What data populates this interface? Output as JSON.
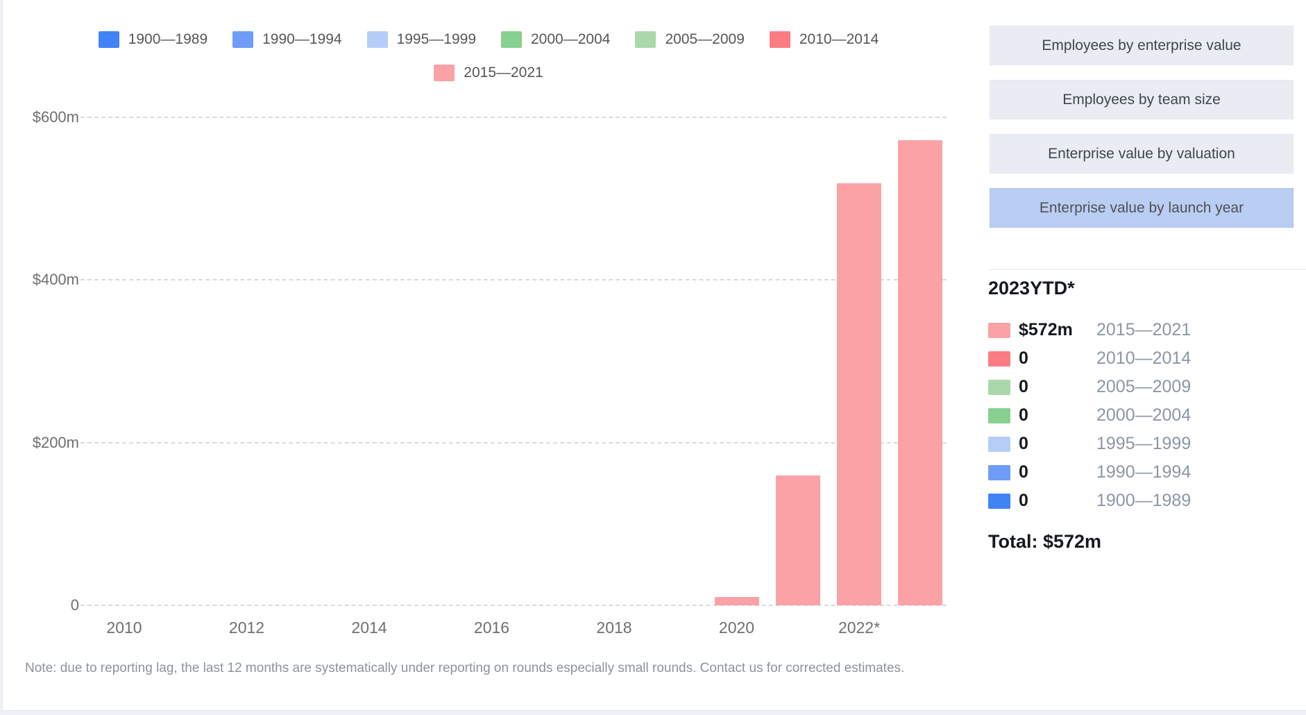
{
  "note": "Note: due to reporting lag, the last 12 months are systematically under reporting on rounds especially small rounds. Contact us for corrected estimates.",
  "view_buttons": [
    {
      "label": "Employees by enterprise value",
      "active": false
    },
    {
      "label": "Employees by team size",
      "active": false
    },
    {
      "label": "Enterprise value by valuation",
      "active": false
    },
    {
      "label": "Enterprise value by launch year",
      "active": true
    }
  ],
  "stats": {
    "heading": "2023YTD*",
    "rows": [
      {
        "color": "#fba2a6",
        "value": "$572m",
        "label": "2015—2021"
      },
      {
        "color": "#fb7d82",
        "value": "0",
        "label": "2010—2014"
      },
      {
        "color": "#a9d8ab",
        "value": "0",
        "label": "2005—2009"
      },
      {
        "color": "#87d08f",
        "value": "0",
        "label": "2000—2004"
      },
      {
        "color": "#b5cdf8",
        "value": "0",
        "label": "1995—1999"
      },
      {
        "color": "#6f9cf8",
        "value": "0",
        "label": "1990—1994"
      },
      {
        "color": "#4183f4",
        "value": "0",
        "label": "1900—1989"
      }
    ],
    "total": "Total: $572m"
  },
  "chart_data": {
    "type": "bar",
    "stacked": true,
    "title": "",
    "xlabel": "",
    "ylabel": "",
    "unit": "$m (enterprise value)",
    "x": [
      2020,
      2021,
      2022,
      2023
    ],
    "series": [
      {
        "name": "1900—1989",
        "color": "#4183f4",
        "values": [
          0,
          0,
          0,
          0
        ]
      },
      {
        "name": "1990—1994",
        "color": "#6f9cf8",
        "values": [
          0,
          0,
          0,
          0
        ]
      },
      {
        "name": "1995—1999",
        "color": "#b5cdf8",
        "values": [
          0,
          0,
          0,
          0
        ]
      },
      {
        "name": "2000—2004",
        "color": "#87d08f",
        "values": [
          0,
          0,
          0,
          0
        ]
      },
      {
        "name": "2005—2009",
        "color": "#a9d8ab",
        "values": [
          0,
          0,
          0,
          0
        ]
      },
      {
        "name": "2010—2014",
        "color": "#fb7d82",
        "values": [
          0,
          0,
          0,
          0
        ]
      },
      {
        "name": "2015—2021",
        "color": "#fba2a6",
        "values": [
          10,
          160,
          519,
          572
        ]
      }
    ],
    "ylim": [
      0,
      600
    ],
    "y_ticks": [
      {
        "value": 600,
        "label": "$600m"
      },
      {
        "value": 400,
        "label": "$400m"
      },
      {
        "value": 200,
        "label": "$200m"
      },
      {
        "value": 0,
        "label": "0"
      }
    ],
    "x_tick_labels": [
      {
        "x": 2010,
        "label": "2010"
      },
      {
        "x": 2012,
        "label": "2012"
      },
      {
        "x": 2014,
        "label": "2014"
      },
      {
        "x": 2016,
        "label": "2016"
      },
      {
        "x": 2018,
        "label": "2018"
      },
      {
        "x": 2020,
        "label": "2020"
      },
      {
        "x": 2022,
        "label": "2022*"
      }
    ],
    "grid": "horizontal-dashed",
    "legend_position": "top-center"
  }
}
